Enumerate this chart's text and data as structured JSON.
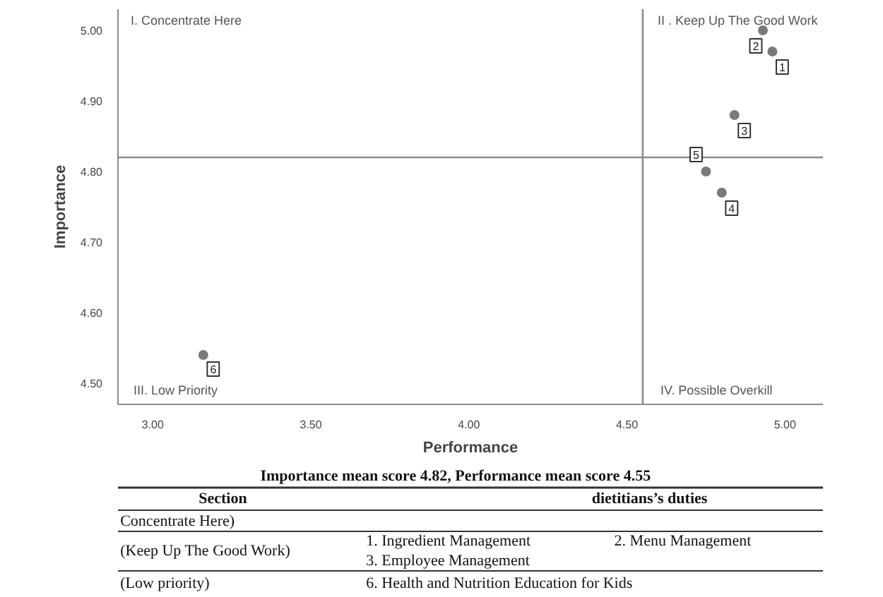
{
  "chart_data": {
    "type": "scatter",
    "xlabel": "Performance",
    "ylabel": "Importance",
    "color": "#7a7a7a",
    "marker": "circle",
    "grid": false,
    "x": [
      4.96,
      4.93,
      4.84,
      4.8,
      4.75,
      3.16
    ],
    "values": [
      4.97,
      5.0,
      4.88,
      4.77,
      4.8,
      4.54
    ],
    "xlim": [
      2.89,
      5.12
    ],
    "ylim": [
      4.47,
      5.03
    ],
    "xticks": [
      {
        "value": 3,
        "label": "3.00"
      },
      {
        "value": 3.5,
        "label": "3.50"
      },
      {
        "value": 4,
        "label": "4.00"
      },
      {
        "value": 4.5,
        "label": "4.50"
      },
      {
        "value": 5,
        "label": "5.00"
      }
    ],
    "yticks": [
      {
        "value": 4.5,
        "label": "4.50"
      },
      {
        "value": 4.6,
        "label": "4.60"
      },
      {
        "value": 4.7,
        "label": "4.70"
      },
      {
        "value": 4.8,
        "label": "4.80"
      },
      {
        "value": 4.9,
        "label": "4.90"
      },
      {
        "value": 5,
        "label": "5.00"
      }
    ],
    "ref_lines": [
      {
        "axis": "y",
        "value": 4.82
      },
      {
        "axis": "x",
        "value": 4.55
      }
    ],
    "annotations": [
      "I. Concentrate Here",
      "II . Keep Up The Good Work",
      "III. Low Priority",
      "IV. Possible Overkill",
      {
        "text": "1",
        "x": 4.96,
        "y": 4.97
      },
      {
        "text": "2",
        "x": 4.93,
        "y": 5.0
      },
      {
        "text": "3",
        "x": 4.84,
        "y": 4.88
      },
      {
        "text": "4",
        "x": 4.8,
        "y": 4.77
      },
      {
        "text": "5",
        "x": 4.75,
        "y": 4.8
      },
      {
        "text": "6",
        "x": 3.16,
        "y": 4.54
      },
      "Importance  mean  score  4.82,   Performance  mean  score  4.55",
      "Section",
      "dietitians’s  duties",
      "Concentrate  Here)",
      "(Keep  Up  The  Good  Work)",
      "1.  Ingredient  Management",
      "2.  Menu  Management",
      "3.  Employee  Management",
      "(Low  priority)",
      "6.  Health  and  Nutrition  Education  for  Kids"
    ]
  }
}
